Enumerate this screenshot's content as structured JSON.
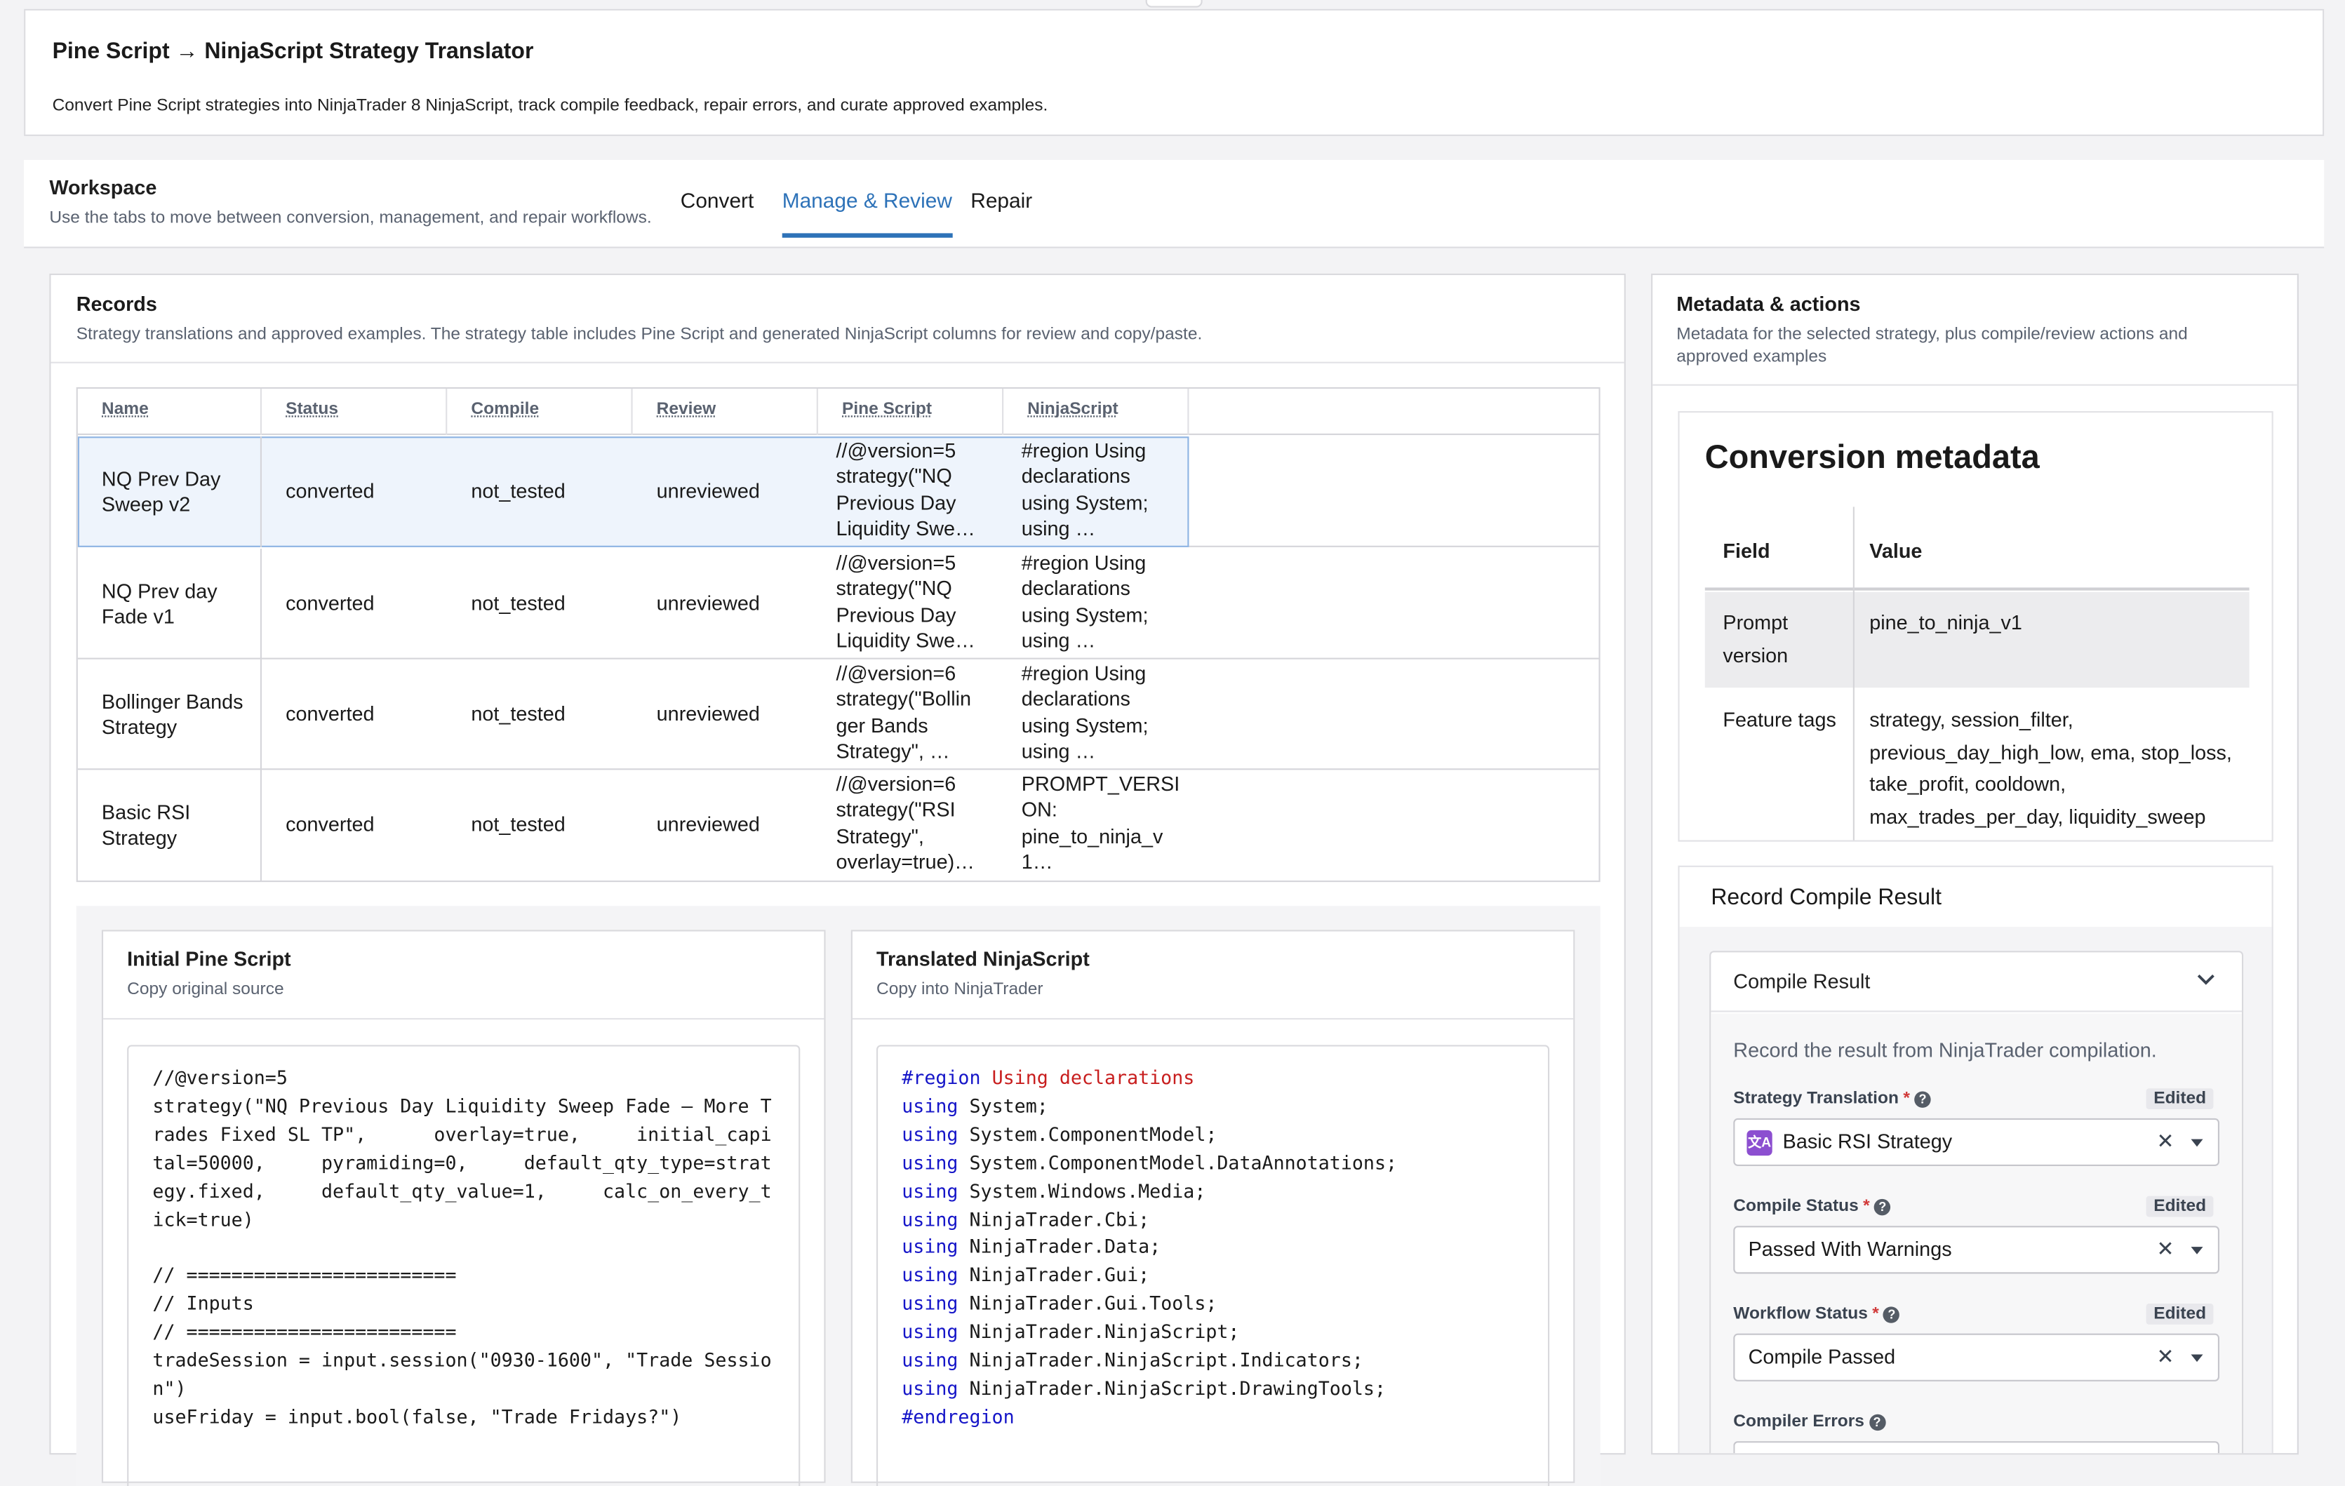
{
  "header": {
    "title": "Pine Script → NinjaScript Strategy Translator",
    "description": "Convert Pine Script strategies into NinjaTrader 8 NinjaScript, track compile feedback, repair errors, and curate approved examples."
  },
  "workspace": {
    "title": "Workspace",
    "description": "Use the tabs to move between conversion, management, and repair workflows.",
    "tabs": [
      {
        "label": "Convert",
        "active": false
      },
      {
        "label": "Manage & Review",
        "active": true
      },
      {
        "label": "Repair",
        "active": false
      }
    ]
  },
  "records": {
    "title": "Records",
    "description": "Strategy translations and approved examples. The strategy table includes Pine Script and generated NinjaScript columns for review and copy/paste.",
    "columns": [
      "Name",
      "Status",
      "Compile",
      "Review",
      "Pine Script",
      "NinjaScript"
    ],
    "rows": [
      {
        "name": "NQ Prev Day Sweep v2",
        "status": "converted",
        "compile": "not_tested",
        "review": "unreviewed",
        "pine": [
          "//@version=5",
          "strategy(\"NQ",
          "Previous Day",
          "Liquidity Swe…"
        ],
        "ninja": [
          "#region Using",
          "declarations",
          "using System;",
          "using …"
        ],
        "selected": true
      },
      {
        "name": "NQ Prev day Fade v1",
        "status": "converted",
        "compile": "not_tested",
        "review": "unreviewed",
        "pine": [
          "//@version=5",
          "strategy(\"NQ",
          "Previous Day",
          "Liquidity Swe…"
        ],
        "ninja": [
          "#region Using",
          "declarations",
          "using System;",
          "using …"
        ],
        "selected": false
      },
      {
        "name": "Bollinger Bands Strategy",
        "status": "converted",
        "compile": "not_tested",
        "review": "unreviewed",
        "pine": [
          "//@version=6",
          "strategy(\"Bollin",
          "ger Bands",
          "Strategy\", …"
        ],
        "ninja": [
          "#region Using",
          "declarations",
          "using System;",
          "using …"
        ],
        "selected": false
      },
      {
        "name": "Basic RSI Strategy",
        "status": "converted",
        "compile": "not_tested",
        "review": "unreviewed",
        "pine": [
          "//@version=6",
          "strategy(\"RSI",
          "Strategy\",",
          "overlay=true)…"
        ],
        "ninja": [
          "PROMPT_VERSI",
          "ON:",
          "pine_to_ninja_v",
          "1…"
        ],
        "selected": false
      }
    ]
  },
  "pine_card": {
    "title": "Initial Pine Script",
    "subtitle": "Copy original source",
    "code": "//@version=5\nstrategy(\"NQ Previous Day Liquidity Sweep Fade – More T\nrades Fixed SL TP\",      overlay=true,     initial_capi\ntal=50000,     pyramiding=0,     default_qty_type=strat\negy.fixed,     default_qty_value=1,     calc_on_every_t\nick=true)\n\n// ========================\n// Inputs\n// ========================\ntradeSession = input.session(\"0930-1600\", \"Trade Sessio\nn\")\nuseFriday = input.bool(false, \"Trade Fridays?\")"
  },
  "ninja_card": {
    "title": "Translated NinjaScript",
    "subtitle": "Copy into NinjaTrader",
    "region_start": "#region",
    "region_label": "Using declarations",
    "using_keyword": "using",
    "usings": [
      "System;",
      "System.ComponentModel;",
      "System.ComponentModel.DataAnnotations;",
      "System.Windows.Media;",
      "NinjaTrader.Cbi;",
      "NinjaTrader.Data;",
      "NinjaTrader.Gui;",
      "NinjaTrader.Gui.Tools;",
      "NinjaTrader.NinjaScript;",
      "NinjaTrader.NinjaScript.Indicators;",
      "NinjaTrader.NinjaScript.DrawingTools;"
    ],
    "region_end": "#endregion"
  },
  "metadata_panel": {
    "title": "Metadata & actions",
    "description": "Metadata for the selected strategy, plus compile/review actions and approved examples",
    "card_title": "Conversion metadata",
    "columns": [
      "Field",
      "Value"
    ],
    "rows": [
      {
        "field": "Prompt version",
        "value": "pine_to_ninja_v1"
      },
      {
        "field": "Feature tags",
        "value": "strategy, session_filter, previous_day_high_low, ema, stop_loss, take_profit, cooldown, max_trades_per_day, liquidity_sweep"
      }
    ]
  },
  "compile_result": {
    "card_title": "Record Compile Result",
    "accordion_label": "Compile Result",
    "instruction": "Record the result from NinjaTrader compilation.",
    "edited_label": "Edited",
    "fields": [
      {
        "label": "Strategy Translation",
        "value": "Basic RSI Strategy",
        "icon": "translate-icon"
      },
      {
        "label": "Compile Status",
        "value": "Passed With Warnings"
      },
      {
        "label": "Workflow Status",
        "value": "Compile Passed"
      },
      {
        "label": "Compiler Errors",
        "value": ""
      }
    ]
  },
  "colors": {
    "accent": "#2d72b8",
    "keyword": "#1515c8",
    "region": "#c81e1e",
    "required": "#d13a3a",
    "app_icon": "#8c4fd0"
  }
}
